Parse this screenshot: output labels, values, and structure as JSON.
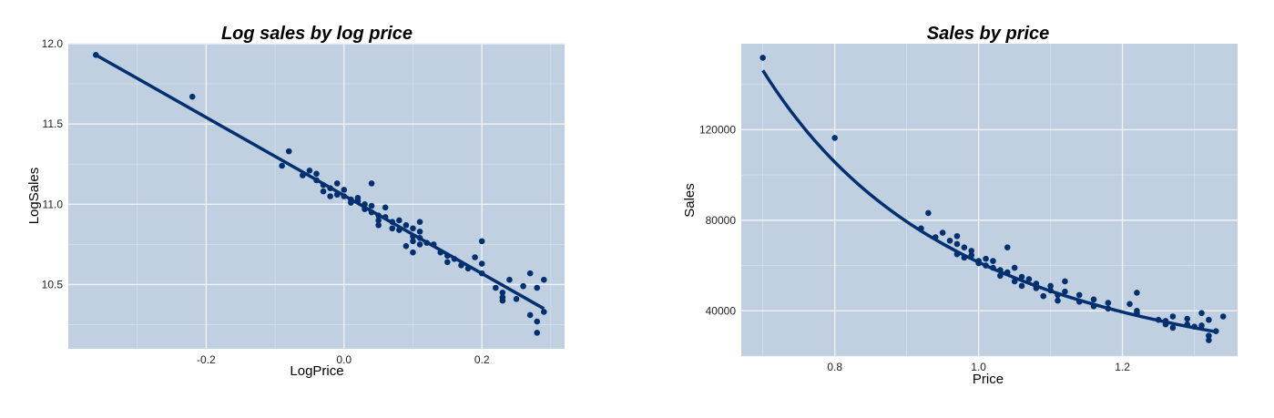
{
  "colors": {
    "panel": "#c0d0e0",
    "grid_major": "#eef2f6",
    "grid_minor": "#d4e0ea",
    "series": "#003070"
  },
  "chart_data": [
    {
      "type": "scatter",
      "title": "Log sales by log price",
      "xlabel": "LogPrice",
      "ylabel": "LogSales",
      "xlim": [
        -0.4,
        0.32
      ],
      "ylim": [
        10.1,
        12.0
      ],
      "x_ticks": [
        -0.2,
        0.0,
        0.2
      ],
      "x_tick_labels": [
        "-0.2",
        "0.0",
        "0.2"
      ],
      "y_ticks": [
        10.5,
        11.0,
        11.5,
        12.0
      ],
      "y_tick_labels": [
        "10.5",
        "11.0",
        "11.5",
        "12.0"
      ],
      "x_minor": [
        -0.3,
        -0.1,
        0.1,
        0.3
      ],
      "y_minor": [
        10.25,
        10.75,
        11.25,
        11.75
      ],
      "grid": true,
      "fit": {
        "type": "linear",
        "x": [
          -0.36,
          0.29
        ],
        "y": [
          11.93,
          10.35
        ]
      },
      "points": [
        [
          -0.36,
          11.93
        ],
        [
          -0.22,
          11.67
        ],
        [
          -0.08,
          11.33
        ],
        [
          -0.09,
          11.24
        ],
        [
          -0.06,
          11.18
        ],
        [
          -0.05,
          11.21
        ],
        [
          -0.04,
          11.19
        ],
        [
          -0.04,
          11.15
        ],
        [
          -0.03,
          11.12
        ],
        [
          -0.03,
          11.08
        ],
        [
          -0.02,
          11.1
        ],
        [
          -0.02,
          11.05
        ],
        [
          -0.01,
          11.13
        ],
        [
          -0.01,
          11.06
        ],
        [
          0.0,
          11.09
        ],
        [
          0.0,
          11.05
        ],
        [
          0.01,
          11.03
        ],
        [
          0.01,
          11.01
        ],
        [
          0.02,
          11.04
        ],
        [
          0.02,
          11.02
        ],
        [
          0.03,
          11.0
        ],
        [
          0.03,
          10.97
        ],
        [
          0.04,
          10.99
        ],
        [
          0.04,
          11.13
        ],
        [
          0.04,
          10.95
        ],
        [
          0.05,
          10.93
        ],
        [
          0.05,
          10.9
        ],
        [
          0.05,
          10.87
        ],
        [
          0.06,
          10.98
        ],
        [
          0.06,
          10.92
        ],
        [
          0.07,
          10.89
        ],
        [
          0.07,
          10.85
        ],
        [
          0.08,
          10.9
        ],
        [
          0.08,
          10.84
        ],
        [
          0.09,
          10.87
        ],
        [
          0.09,
          10.74
        ],
        [
          0.1,
          10.85
        ],
        [
          0.1,
          10.8
        ],
        [
          0.1,
          10.77
        ],
        [
          0.1,
          10.7
        ],
        [
          0.11,
          10.83
        ],
        [
          0.11,
          10.79
        ],
        [
          0.11,
          10.75
        ],
        [
          0.11,
          10.89
        ],
        [
          0.12,
          10.76
        ],
        [
          0.13,
          10.75
        ],
        [
          0.14,
          10.7
        ],
        [
          0.15,
          10.68
        ],
        [
          0.15,
          10.64
        ],
        [
          0.16,
          10.66
        ],
        [
          0.17,
          10.62
        ],
        [
          0.18,
          10.6
        ],
        [
          0.19,
          10.67
        ],
        [
          0.2,
          10.77
        ],
        [
          0.2,
          10.63
        ],
        [
          0.2,
          10.57
        ],
        [
          0.22,
          10.48
        ],
        [
          0.23,
          10.45
        ],
        [
          0.23,
          10.42
        ],
        [
          0.23,
          10.4
        ],
        [
          0.24,
          10.53
        ],
        [
          0.25,
          10.41
        ],
        [
          0.26,
          10.49
        ],
        [
          0.27,
          10.57
        ],
        [
          0.27,
          10.31
        ],
        [
          0.28,
          10.27
        ],
        [
          0.28,
          10.2
        ],
        [
          0.28,
          10.48
        ],
        [
          0.29,
          10.33
        ],
        [
          0.29,
          10.53
        ]
      ]
    },
    {
      "type": "scatter",
      "title": "Sales by price",
      "xlabel": "Price",
      "ylabel": "Sales",
      "xlim": [
        0.67,
        1.36
      ],
      "ylim": [
        20000,
        158000
      ],
      "x_ticks": [
        0.8,
        1.0,
        1.2
      ],
      "x_tick_labels": [
        "0.8",
        "1.0",
        "1.2"
      ],
      "y_ticks": [
        40000,
        80000,
        120000
      ],
      "y_tick_labels": [
        "40000",
        "80000",
        "120000"
      ],
      "x_minor": [
        0.7,
        0.9,
        1.1,
        1.3
      ],
      "y_minor": [
        20000,
        60000,
        100000,
        140000
      ],
      "grid": true,
      "fit": {
        "type": "power",
        "a": 61460,
        "b": -2.43,
        "x_range": [
          0.7,
          1.33
        ]
      },
      "points": [
        [
          0.7,
          151800
        ],
        [
          0.8,
          116400
        ],
        [
          0.92,
          76400
        ],
        [
          0.93,
          83200
        ],
        [
          0.94,
          72500
        ],
        [
          0.95,
          74500
        ],
        [
          0.96,
          71000
        ],
        [
          0.97,
          73000
        ],
        [
          0.97,
          69500
        ],
        [
          0.97,
          65000
        ],
        [
          0.98,
          68000
        ],
        [
          0.98,
          63500
        ],
        [
          0.99,
          66500
        ],
        [
          0.99,
          64500
        ],
        [
          1.0,
          62000
        ],
        [
          1.0,
          61000
        ],
        [
          1.01,
          63000
        ],
        [
          1.01,
          60000
        ],
        [
          1.02,
          62000
        ],
        [
          1.02,
          59000
        ],
        [
          1.03,
          58000
        ],
        [
          1.03,
          55500
        ],
        [
          1.04,
          68000
        ],
        [
          1.04,
          57000
        ],
        [
          1.05,
          59000
        ],
        [
          1.05,
          53000
        ],
        [
          1.06,
          55000
        ],
        [
          1.06,
          51000
        ],
        [
          1.07,
          54000
        ],
        [
          1.08,
          52000
        ],
        [
          1.08,
          50000
        ],
        [
          1.09,
          46500
        ],
        [
          1.1,
          51000
        ],
        [
          1.1,
          49000
        ],
        [
          1.11,
          47000
        ],
        [
          1.11,
          44500
        ],
        [
          1.12,
          53000
        ],
        [
          1.12,
          48500
        ],
        [
          1.14,
          47000
        ],
        [
          1.14,
          44000
        ],
        [
          1.16,
          45000
        ],
        [
          1.16,
          42000
        ],
        [
          1.18,
          43500
        ],
        [
          1.18,
          41000
        ],
        [
          1.21,
          43000
        ],
        [
          1.22,
          48000
        ],
        [
          1.22,
          40000
        ],
        [
          1.22,
          39000
        ],
        [
          1.25,
          36000
        ],
        [
          1.26,
          35500
        ],
        [
          1.26,
          34000
        ],
        [
          1.27,
          37500
        ],
        [
          1.27,
          32500
        ],
        [
          1.29,
          36500
        ],
        [
          1.29,
          34000
        ],
        [
          1.3,
          33000
        ],
        [
          1.31,
          39000
        ],
        [
          1.31,
          33500
        ],
        [
          1.32,
          36000
        ],
        [
          1.32,
          29000
        ],
        [
          1.32,
          27000
        ],
        [
          1.33,
          31000
        ],
        [
          1.34,
          37500
        ]
      ]
    }
  ]
}
